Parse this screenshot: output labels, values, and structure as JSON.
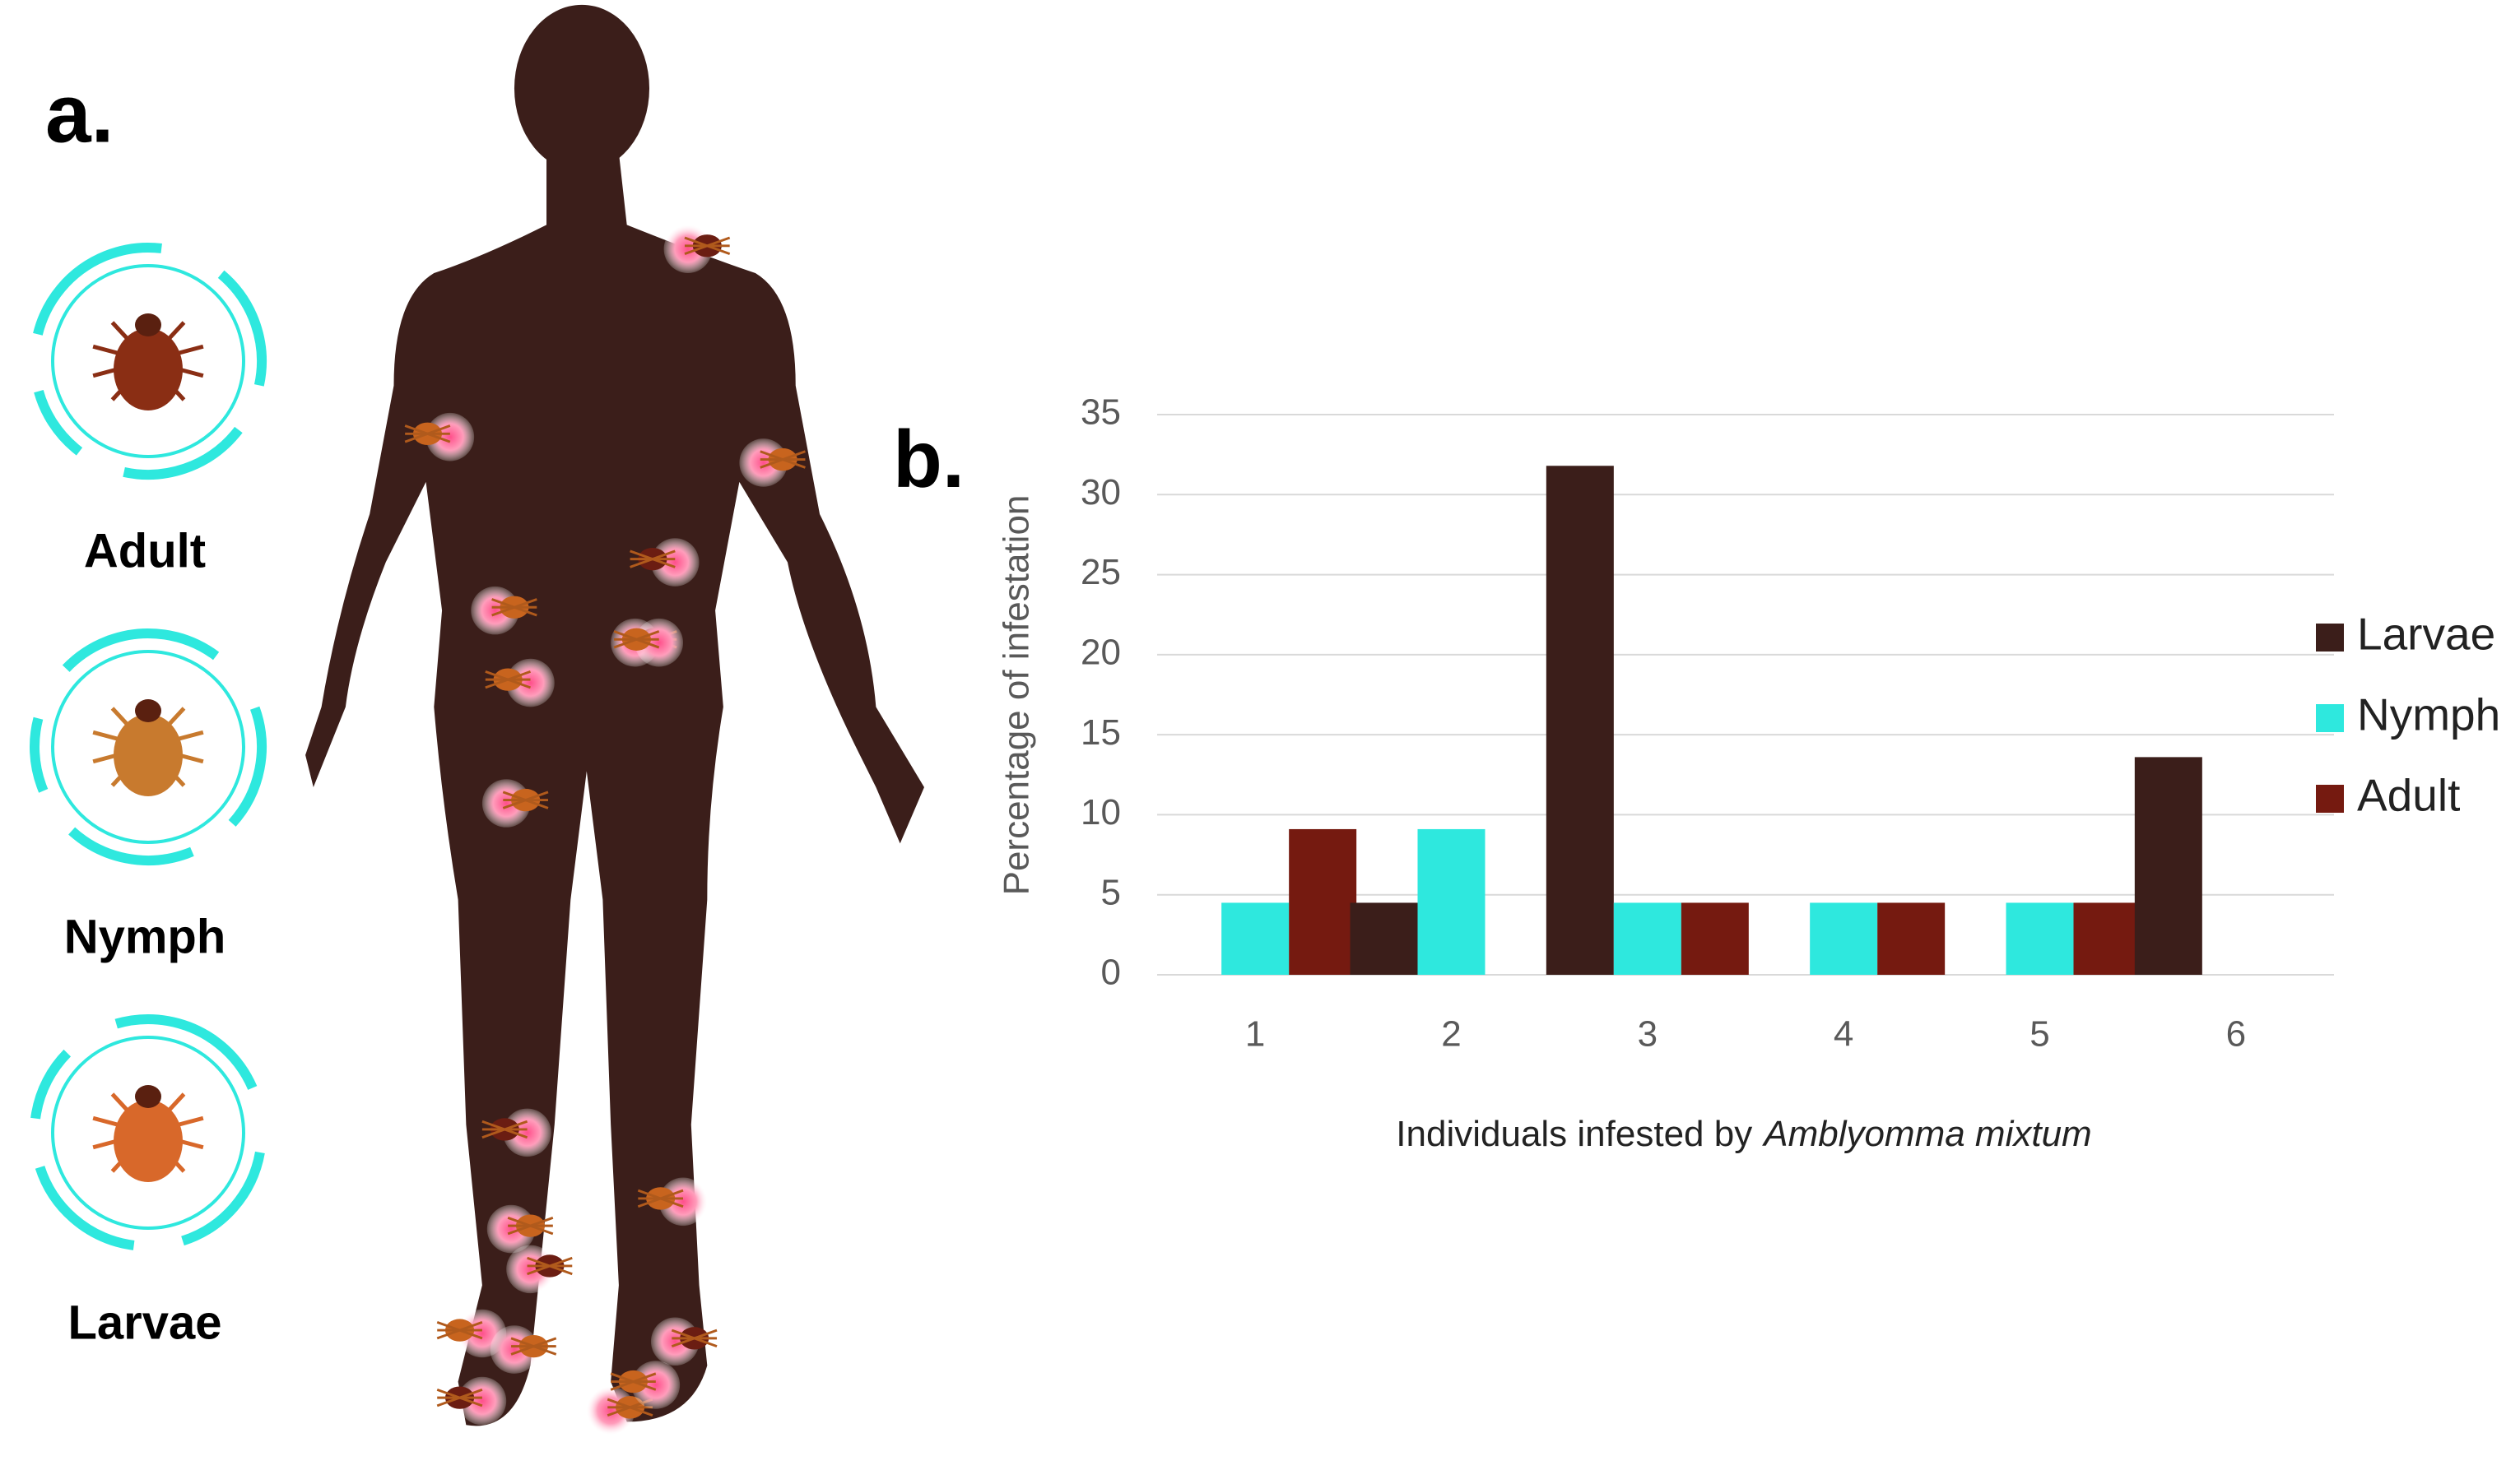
{
  "panel_a": {
    "label": "a.",
    "stages": [
      "Adult",
      "Nymph",
      "Larvae"
    ]
  },
  "chart_data": {
    "type": "bar",
    "panel_label": "b.",
    "y_label": "Percentage of infestation",
    "x_label": [
      "Individuals infested by",
      "Amblyomma mixtum"
    ],
    "categories": [
      "1",
      "2",
      "3",
      "4",
      "5",
      "6"
    ],
    "series": [
      {
        "name": "Larvae",
        "color": "#3b1e1a",
        "values": [
          0,
          4.5,
          31.8,
          0,
          0,
          13.6
        ]
      },
      {
        "name": "Nymph",
        "color": "#2ee8de",
        "values": [
          4.5,
          9.1,
          4.5,
          4.5,
          4.5,
          0
        ]
      },
      {
        "name": "Adult",
        "color": "#751a10",
        "values": [
          9.1,
          0,
          4.5,
          4.5,
          4.5,
          0
        ]
      }
    ],
    "ylim": [
      0,
      35
    ],
    "yticks": [
      0,
      5,
      10,
      15,
      20,
      25,
      30,
      35
    ],
    "grid": true,
    "legend": "right"
  }
}
